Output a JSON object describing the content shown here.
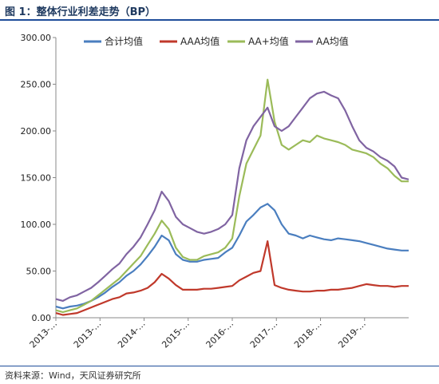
{
  "header": {
    "title": "图 1：整体行业利差走势（BP）"
  },
  "footer": {
    "source": "资料来源：Wind，天风证券研究所"
  },
  "chart_data": {
    "type": "line",
    "title": "图 1：整体行业利差走势（BP）",
    "xlabel": "",
    "ylabel": "",
    "ylim": [
      0,
      300
    ],
    "yticks": [
      "0.00",
      "50.00",
      "100.00",
      "150.00",
      "200.00",
      "250.00",
      "300.00"
    ],
    "xtick_labels": [
      "2013-…",
      "2013-…",
      "2014-…",
      "2015-…",
      "2016-…",
      "2017-…",
      "2018-…",
      "2019-…"
    ],
    "legend_position": "top",
    "grid": false,
    "x": [
      0,
      2,
      4,
      6,
      8,
      10,
      12,
      14,
      16,
      18,
      20,
      22,
      24,
      26,
      28,
      30,
      32,
      34,
      36,
      38,
      40,
      42,
      44,
      46,
      48,
      50,
      52,
      54,
      56,
      58,
      60,
      62,
      64,
      66,
      68,
      70,
      72,
      74,
      76,
      78,
      80,
      82,
      84,
      86,
      88,
      90,
      92,
      94,
      96,
      98,
      100
    ],
    "series": [
      {
        "name": "合计均值",
        "color": "#4a7ebf",
        "values": [
          12,
          10,
          12,
          13,
          15,
          18,
          22,
          27,
          33,
          38,
          45,
          50,
          57,
          66,
          76,
          88,
          83,
          68,
          62,
          60,
          60,
          62,
          63,
          64,
          70,
          75,
          88,
          103,
          110,
          118,
          122,
          115,
          100,
          90,
          88,
          85,
          88,
          86,
          84,
          83,
          85,
          84,
          83,
          82,
          80,
          78,
          76,
          74,
          73,
          72,
          72
        ]
      },
      {
        "name": "AAA均值",
        "color": "#c0392b",
        "values": [
          5,
          3,
          4,
          5,
          8,
          11,
          14,
          17,
          20,
          22,
          26,
          27,
          29,
          32,
          38,
          47,
          42,
          35,
          30,
          30,
          30,
          31,
          31,
          32,
          33,
          34,
          40,
          44,
          48,
          50,
          82,
          35,
          32,
          30,
          29,
          28,
          28,
          29,
          29,
          30,
          30,
          31,
          32,
          34,
          36,
          35,
          34,
          34,
          33,
          34,
          34
        ]
      },
      {
        "name": "AA+均值",
        "color": "#9bbb59",
        "values": [
          8,
          6,
          8,
          10,
          14,
          18,
          24,
          30,
          36,
          42,
          50,
          58,
          66,
          78,
          90,
          104,
          95,
          75,
          65,
          62,
          62,
          66,
          68,
          70,
          75,
          85,
          130,
          165,
          180,
          195,
          255,
          210,
          185,
          180,
          185,
          190,
          188,
          195,
          192,
          190,
          188,
          185,
          180,
          178,
          176,
          172,
          165,
          160,
          152,
          146,
          146
        ]
      },
      {
        "name": "AA均值",
        "color": "#8064a2",
        "values": [
          20,
          18,
          22,
          24,
          28,
          32,
          38,
          45,
          52,
          58,
          68,
          76,
          86,
          100,
          115,
          135,
          125,
          108,
          100,
          96,
          92,
          90,
          92,
          95,
          100,
          110,
          160,
          190,
          205,
          215,
          225,
          205,
          200,
          205,
          215,
          225,
          235,
          240,
          242,
          238,
          235,
          222,
          205,
          190,
          182,
          178,
          172,
          168,
          162,
          150,
          148
        ]
      }
    ]
  }
}
